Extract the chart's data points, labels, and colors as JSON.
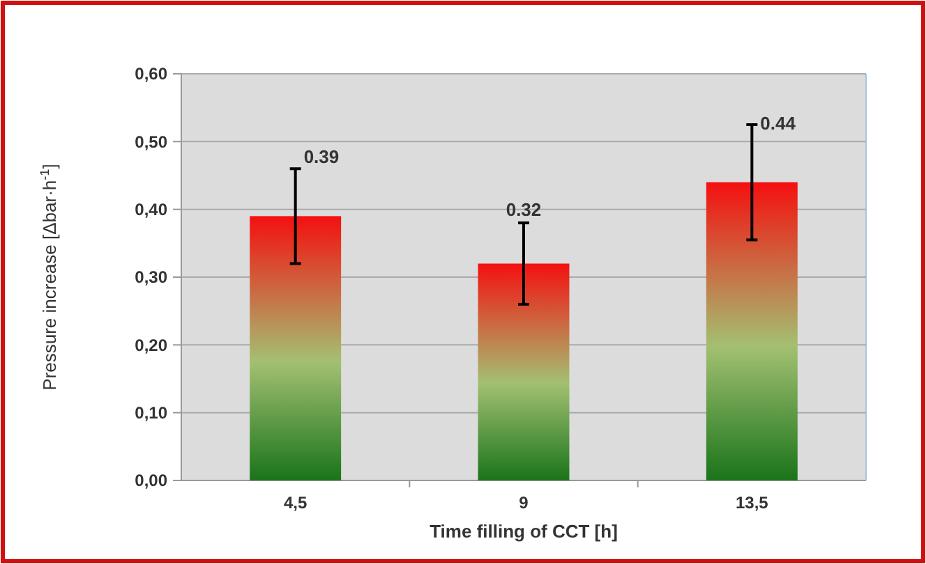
{
  "chart_data": {
    "type": "bar",
    "xlabel": "Time filling of CCT [h]",
    "ylabel": "Pressure increase [Δbar·h$^{-1}$]",
    "categories": [
      "4,5",
      "9",
      "13,5"
    ],
    "values": [
      0.39,
      0.32,
      0.44
    ],
    "errors": [
      0.07,
      0.06,
      [
        0.355,
        0.525
      ]
    ],
    "color": "#f41010",
    "value_labels": [
      "0.39",
      "0.32",
      "0.44"
    ],
    "ylim": [
      0,
      0.6
    ],
    "yticks": [
      {
        "value": 0,
        "label": "0,00"
      },
      {
        "value": 0.1,
        "label": "0,10"
      },
      {
        "value": 0.2,
        "label": "0,20"
      },
      {
        "value": 0.3,
        "label": "0,30"
      },
      {
        "value": 0.4,
        "label": "0,40"
      },
      {
        "value": 0.5,
        "label": "0,50"
      },
      {
        "value": 0.6,
        "label": "0,60"
      }
    ],
    "grid": "y"
  }
}
